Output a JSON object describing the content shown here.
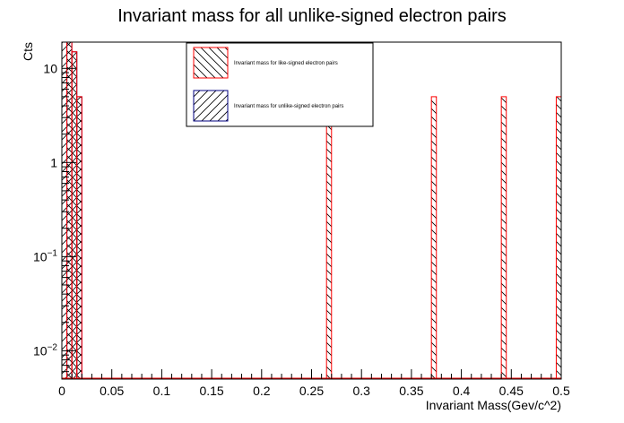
{
  "chart_data": {
    "type": "bar",
    "title": "Invariant mass for all unlike-signed electron pairs",
    "xlabel": "Invariant Mass(Gev/c^2)",
    "ylabel": "Cts",
    "xlim": [
      0,
      0.5
    ],
    "ylim": [
      0.005,
      19
    ],
    "yscale": "log",
    "grid": false,
    "legend_position": "top-center",
    "bin_width": 0.005,
    "x_tick_labels": [
      "0",
      "0.05",
      "0.1",
      "0.15",
      "0.2",
      "0.25",
      "0.3",
      "0.35",
      "0.4",
      "0.45",
      "0.5"
    ],
    "y_tick_labels": [
      {
        "value": 10,
        "base": "10",
        "exp": ""
      },
      {
        "value": 1,
        "base": "1",
        "exp": ""
      },
      {
        "value": 0.1,
        "base": "10",
        "exp": "−1"
      },
      {
        "value": 0.01,
        "base": "10",
        "exp": "−2"
      }
    ],
    "series": [
      {
        "name": "Invariant mass for like-signed electron pairs",
        "color": "#ff0000",
        "hatch": "backslash",
        "bins": [
          {
            "x": 0.005,
            "y": 19
          },
          {
            "x": 0.01,
            "y": 15
          },
          {
            "x": 0.015,
            "y": 5
          },
          {
            "x": 0.265,
            "y": 5
          },
          {
            "x": 0.37,
            "y": 5
          },
          {
            "x": 0.44,
            "y": 5
          },
          {
            "x": 0.495,
            "y": 5
          }
        ]
      },
      {
        "name": "Invariant mass for unlike-signed electron pairs",
        "color": "#000080",
        "hatch": "slash",
        "bins": [
          {
            "x": 0.0,
            "y": 19
          },
          {
            "x": 0.005,
            "y": 19
          },
          {
            "x": 0.01,
            "y": 15
          },
          {
            "x": 0.015,
            "y": 5
          }
        ]
      }
    ]
  }
}
